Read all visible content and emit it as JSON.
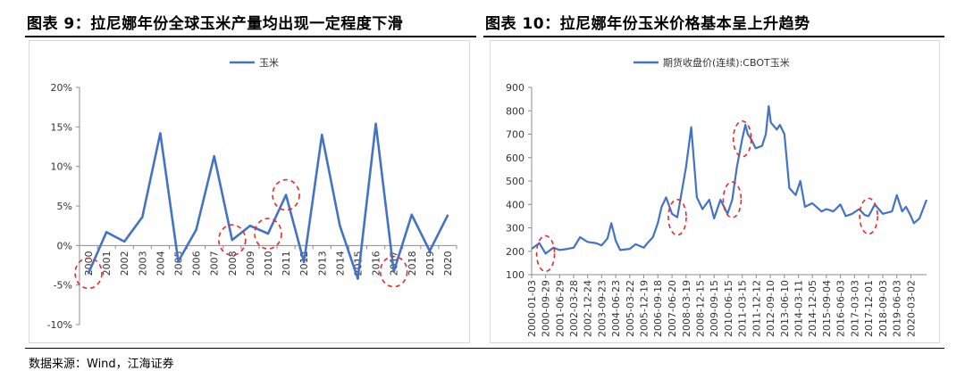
{
  "titles": {
    "left": "图表 9：拉尼娜年份全球玉米产量均出现一定程度下滑",
    "right": "图表 10：拉尼娜年份玉米价格基本呈上升趋势"
  },
  "source": "数据来源：Wind，江海证券",
  "colors": {
    "series": "#4472C4",
    "highlight": "#e52b2b",
    "axis": "#8c8c8c"
  },
  "chart_data": [
    {
      "type": "line",
      "title": "",
      "legend": {
        "position": "top-center"
      },
      "series": [
        {
          "name": "玉米",
          "values": [
            -3.5,
            1.7,
            0.5,
            3.6,
            14.2,
            -2.0,
            2.0,
            11.3,
            0.7,
            2.5,
            1.5,
            6.4,
            -2.1,
            14.0,
            2.5,
            -4.2,
            15.4,
            -3.3,
            3.9,
            -0.7,
            3.8
          ]
        }
      ],
      "categories": [
        "2000",
        "2001",
        "2002",
        "2003",
        "2004",
        "2005",
        "2006",
        "2007",
        "2008",
        "2009",
        "2010",
        "2011",
        "2012",
        "2013",
        "2014",
        "2015",
        "2016",
        "2017",
        "2018",
        "2019",
        "2020"
      ],
      "ylim": [
        -10,
        20
      ],
      "yticks": [
        "-10%",
        "-5%",
        "0%",
        "5%",
        "10%",
        "15%",
        "20%"
      ],
      "highlights": [
        "2000",
        "2008",
        "2010",
        "2011",
        "2017"
      ]
    },
    {
      "type": "line",
      "title": "",
      "legend": {
        "position": "top-center"
      },
      "series": [
        {
          "name": "期货收盘价(连续):CBOT玉米",
          "x": [
            "2000-01-03",
            "2000-06-01",
            "2000-09-29",
            "2001-03-01",
            "2001-06-29",
            "2001-12-01",
            "2002-03-28",
            "2002-08-01",
            "2002-12-24",
            "2003-06-01",
            "2003-09-23",
            "2004-01-15",
            "2004-03-30",
            "2004-06-23",
            "2004-09-15",
            "2005-03-22",
            "2005-07-15",
            "2005-12-19",
            "2006-03-01",
            "2006-06-14",
            "2006-09-18",
            "2006-12-01",
            "2007-02-26",
            "2007-06-20",
            "2007-10-01",
            "2008-03-19",
            "2008-06-27",
            "2008-10-15",
            "2009-02-01",
            "2009-06-12",
            "2009-09-15",
            "2010-01-15",
            "2010-06-01",
            "2010-09-01",
            "2010-12-01",
            "2011-03-15",
            "2011-05-15",
            "2011-07-01",
            "2011-09-01",
            "2011-12-01",
            "2012-04-01",
            "2012-06-15",
            "2012-08-10",
            "2012-09-20",
            "2013-01-15",
            "2013-03-15",
            "2013-06-10",
            "2013-09-15",
            "2014-01-15",
            "2014-04-15",
            "2014-07-15",
            "2014-12-05",
            "2015-06-01",
            "2015-09-04",
            "2016-01-15",
            "2016-06-01",
            "2016-09-15",
            "2017-01-15",
            "2017-06-01",
            "2017-09-15",
            "2017-12-01",
            "2018-04-01",
            "2018-09-03",
            "2019-03-01",
            "2019-06-03",
            "2019-09-15",
            "2019-11-28",
            "2020-03-02",
            "2020-04-28",
            "2020-08-15",
            "2020-12-31"
          ],
          "values": [
            210,
            235,
            190,
            215,
            205,
            210,
            215,
            260,
            240,
            235,
            225,
            255,
            320,
            245,
            205,
            210,
            230,
            215,
            235,
            260,
            320,
            390,
            430,
            360,
            345,
            560,
            730,
            430,
            380,
            420,
            340,
            420,
            360,
            420,
            560,
            680,
            740,
            700,
            680,
            640,
            650,
            700,
            820,
            750,
            720,
            740,
            700,
            470,
            440,
            500,
            390,
            405,
            370,
            380,
            370,
            400,
            350,
            360,
            380,
            355,
            350,
            400,
            360,
            370,
            440,
            370,
            390,
            350,
            320,
            340,
            420
          ]
        }
      ],
      "xtick_labels": [
        "2000-01-03",
        "2000-09-29",
        "2001-06-29",
        "2002-03-28",
        "2002-12-24",
        "2003-09-23",
        "2004-06-23",
        "2005-03-22",
        "2005-12-19",
        "2006-09-18",
        "2007-06-20",
        "2008-03-19",
        "2008-12-15",
        "2009-09-15",
        "2010-06-15",
        "2011-03-15",
        "2011-12-12",
        "2012-09-10",
        "2013-06-10",
        "2014-03-11",
        "2014-12-05",
        "2015-09-04",
        "2016-06-03",
        "2017-03-03",
        "2017-12-01",
        "2018-09-03",
        "2019-06-03",
        "2020-03-02"
      ],
      "ylim": [
        100,
        900
      ],
      "yticks": [
        "100",
        "200",
        "300",
        "400",
        "500",
        "600",
        "700",
        "800",
        "900"
      ],
      "highlights": [
        "2000-09-29",
        "2007-10-01",
        "2010-09-01",
        "2011-03-15",
        "2017-12-01"
      ]
    }
  ]
}
